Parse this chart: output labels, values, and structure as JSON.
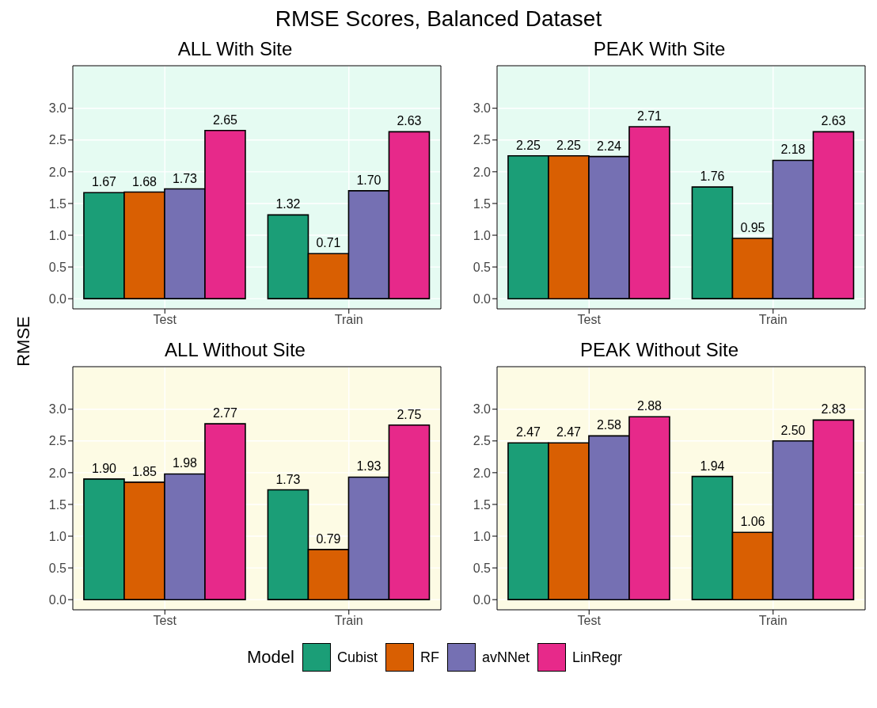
{
  "chart_data": [
    {
      "type": "bar",
      "title": "ALL With Site",
      "annotations": [
        "RMSE Scores, Balanced Dataset"
      ],
      "ylabel": "RMSE",
      "legend_title": "Model",
      "legend": "bottom",
      "grid": true,
      "categories": [
        "Test",
        "Train"
      ],
      "ylim": [
        -0.16,
        3.67
      ],
      "yticks": [
        {
          "value": 0,
          "label": "0.0"
        },
        {
          "value": 0.5,
          "label": "0.5"
        },
        {
          "value": 1,
          "label": "1.0"
        },
        {
          "value": 1.5,
          "label": "1.5"
        },
        {
          "value": 2,
          "label": "2.0"
        },
        {
          "value": 2.5,
          "label": "2.5"
        },
        {
          "value": 3,
          "label": "3.0"
        }
      ],
      "series": [
        {
          "name": "Cubist",
          "color": "#1b9e77",
          "values": [
            1.67,
            1.32
          ],
          "value_labels": [
            "1.67",
            "1.32"
          ]
        },
        {
          "name": "RF",
          "color": "#d95f02",
          "values": [
            1.68,
            0.71
          ],
          "value_labels": [
            "1.68",
            "0.71"
          ]
        },
        {
          "name": "avNNet",
          "color": "#7570b3",
          "values": [
            1.73,
            1.7
          ],
          "value_labels": [
            "1.73",
            "1.70"
          ]
        },
        {
          "name": "LinRegr",
          "color": "#e7298a",
          "values": [
            2.65,
            2.63
          ],
          "value_labels": [
            "2.65",
            "2.63"
          ]
        }
      ]
    },
    {
      "type": "bar",
      "title": "PEAK With Site",
      "grid": true,
      "categories": [
        "Test",
        "Train"
      ],
      "ylim": [
        -0.16,
        3.67
      ],
      "yticks": [
        {
          "value": 0,
          "label": "0.0"
        },
        {
          "value": 0.5,
          "label": "0.5"
        },
        {
          "value": 1,
          "label": "1.0"
        },
        {
          "value": 1.5,
          "label": "1.5"
        },
        {
          "value": 2,
          "label": "2.0"
        },
        {
          "value": 2.5,
          "label": "2.5"
        },
        {
          "value": 3,
          "label": "3.0"
        }
      ],
      "series": [
        {
          "color": "#1b9e77",
          "values": [
            2.25,
            1.76
          ],
          "value_labels": [
            "2.25",
            "1.76"
          ]
        },
        {
          "color": "#d95f02",
          "values": [
            2.25,
            0.95
          ],
          "value_labels": [
            "2.25",
            "0.95"
          ]
        },
        {
          "color": "#7570b3",
          "values": [
            2.24,
            2.18
          ],
          "value_labels": [
            "2.24",
            "2.18"
          ]
        },
        {
          "color": "#e7298a",
          "values": [
            2.71,
            2.63
          ],
          "value_labels": [
            "2.71",
            "2.63"
          ]
        }
      ]
    },
    {
      "type": "bar",
      "title": "ALL Without Site",
      "grid": true,
      "categories": [
        "Test",
        "Train"
      ],
      "ylim": [
        -0.16,
        3.67
      ],
      "yticks": [
        {
          "value": 0,
          "label": "0.0"
        },
        {
          "value": 0.5,
          "label": "0.5"
        },
        {
          "value": 1,
          "label": "1.0"
        },
        {
          "value": 1.5,
          "label": "1.5"
        },
        {
          "value": 2,
          "label": "2.0"
        },
        {
          "value": 2.5,
          "label": "2.5"
        },
        {
          "value": 3,
          "label": "3.0"
        }
      ],
      "series": [
        {
          "color": "#1b9e77",
          "values": [
            1.9,
            1.73
          ],
          "value_labels": [
            "1.90",
            "1.73"
          ]
        },
        {
          "color": "#d95f02",
          "values": [
            1.85,
            0.79
          ],
          "value_labels": [
            "1.85",
            "0.79"
          ]
        },
        {
          "color": "#7570b3",
          "values": [
            1.98,
            1.93
          ],
          "value_labels": [
            "1.98",
            "1.93"
          ]
        },
        {
          "color": "#e7298a",
          "values": [
            2.77,
            2.75
          ],
          "value_labels": [
            "2.77",
            "2.75"
          ]
        }
      ]
    },
    {
      "type": "bar",
      "title": "PEAK Without Site",
      "grid": true,
      "categories": [
        "Test",
        "Train"
      ],
      "ylim": [
        -0.16,
        3.67
      ],
      "yticks": [
        {
          "value": 0,
          "label": "0.0"
        },
        {
          "value": 0.5,
          "label": "0.5"
        },
        {
          "value": 1,
          "label": "1.0"
        },
        {
          "value": 1.5,
          "label": "1.5"
        },
        {
          "value": 2,
          "label": "2.0"
        },
        {
          "value": 2.5,
          "label": "2.5"
        },
        {
          "value": 3,
          "label": "3.0"
        }
      ],
      "series": [
        {
          "color": "#1b9e77",
          "values": [
            2.47,
            1.94
          ],
          "value_labels": [
            "2.47",
            "1.94"
          ]
        },
        {
          "color": "#d95f02",
          "values": [
            2.47,
            1.06
          ],
          "value_labels": [
            "2.47",
            "1.06"
          ]
        },
        {
          "color": "#7570b3",
          "values": [
            2.58,
            2.5
          ],
          "value_labels": [
            "2.58",
            "2.50"
          ]
        },
        {
          "color": "#e7298a",
          "values": [
            2.88,
            2.83
          ],
          "value_labels": [
            "2.88",
            "2.83"
          ]
        }
      ]
    }
  ]
}
